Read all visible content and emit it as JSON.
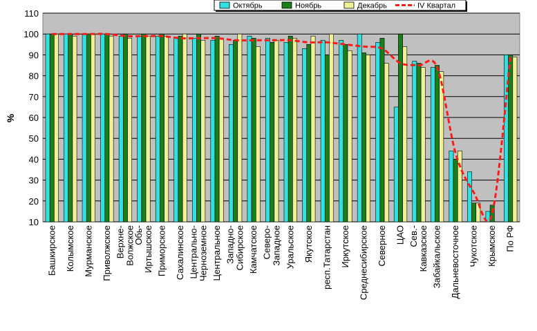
{
  "chart_data": {
    "type": "bar",
    "ylabel": "%",
    "xlabel": "",
    "ylim": [
      10,
      110
    ],
    "yticks": [
      10,
      20,
      30,
      40,
      50,
      60,
      70,
      80,
      90,
      100,
      110
    ],
    "grid": true,
    "legend_position": "top-right",
    "categories": [
      "Башкирское",
      "Колымское",
      "Мурманское",
      "Приволжское",
      "Верхне-Волжское",
      "Обь-Иртышское",
      "Приморское",
      "Сахалинское",
      "Центрально-Черноземное",
      "Центральное",
      "Западно-Сибирское",
      "Камчатское",
      "Северо-Западное",
      "Уральское",
      "Якутское",
      "респ.Татарстан",
      "Иркутское",
      "Среднесибирское",
      "Северное",
      "ЦАО",
      "Сев.-Кавказское",
      "Забайкальское",
      "Дальневосточное",
      "Чукотское",
      "Крымское",
      "По РФ"
    ],
    "label_lines": [
      [
        "Башкирское"
      ],
      [
        "Колымское"
      ],
      [
        "Мурманское"
      ],
      [
        "Приволжское"
      ],
      [
        "Верхне-",
        "Волжское"
      ],
      [
        "Обь-",
        "Иртышское"
      ],
      [
        "Приморское"
      ],
      [
        "Сахалинское"
      ],
      [
        "Центрально-",
        "Черноземное"
      ],
      [
        "Центральное"
      ],
      [
        "Западно-",
        "Сибирское"
      ],
      [
        "Камчатское"
      ],
      [
        "Северо-",
        "Западное"
      ],
      [
        "Уральское"
      ],
      [
        "Якутское"
      ],
      [
        "респ.Татарстан"
      ],
      [
        "Иркутское"
      ],
      [
        "Среднесибирское"
      ],
      [
        "Северное"
      ],
      [
        "ЦАО"
      ],
      [
        "Сев.-",
        "Кавказское"
      ],
      [
        "Забайкальское"
      ],
      [
        "Дальневосточное"
      ],
      [
        "Чукотское"
      ],
      [
        "Крымское"
      ],
      [
        "По РФ"
      ]
    ],
    "series": [
      {
        "name": "Октябрь",
        "kind": "bar",
        "color": "#33e0e0",
        "values": [
          100,
          100,
          100,
          100,
          99,
          99,
          99,
          98,
          98,
          97,
          95,
          99,
          98,
          96,
          93,
          97,
          97,
          100,
          96,
          65,
          87,
          84,
          44,
          34,
          15,
          90
        ]
      },
      {
        "name": "Ноябрь",
        "kind": "bar",
        "color": "#1a7f1a",
        "values": [
          100,
          100,
          100,
          100,
          100,
          100,
          100,
          99,
          100,
          99,
          97,
          98,
          96,
          99,
          95,
          90,
          95,
          91,
          98,
          100,
          86,
          85,
          40,
          19,
          18,
          90
        ]
      },
      {
        "name": "Декабрь",
        "kind": "bar",
        "color": "#f0f096",
        "values": [
          100,
          99,
          100,
          99,
          98,
          99,
          99,
          100,
          97,
          98,
          100,
          94,
          97,
          98,
          99,
          100,
          92,
          90,
          86,
          94,
          84,
          82,
          44,
          19,
          10,
          89
        ]
      },
      {
        "name": "IV Квартал",
        "kind": "line",
        "color": "#ff1a1a",
        "values": [
          100,
          100,
          100,
          100,
          99,
          99,
          99,
          98,
          98,
          98,
          97,
          97,
          97,
          97,
          96,
          96,
          95,
          94,
          93,
          86,
          85,
          84,
          43,
          24,
          14,
          90
        ]
      }
    ]
  },
  "colors": {
    "plot_background": "#c0c0c0",
    "grid": "#000000",
    "frame": "#808080"
  }
}
